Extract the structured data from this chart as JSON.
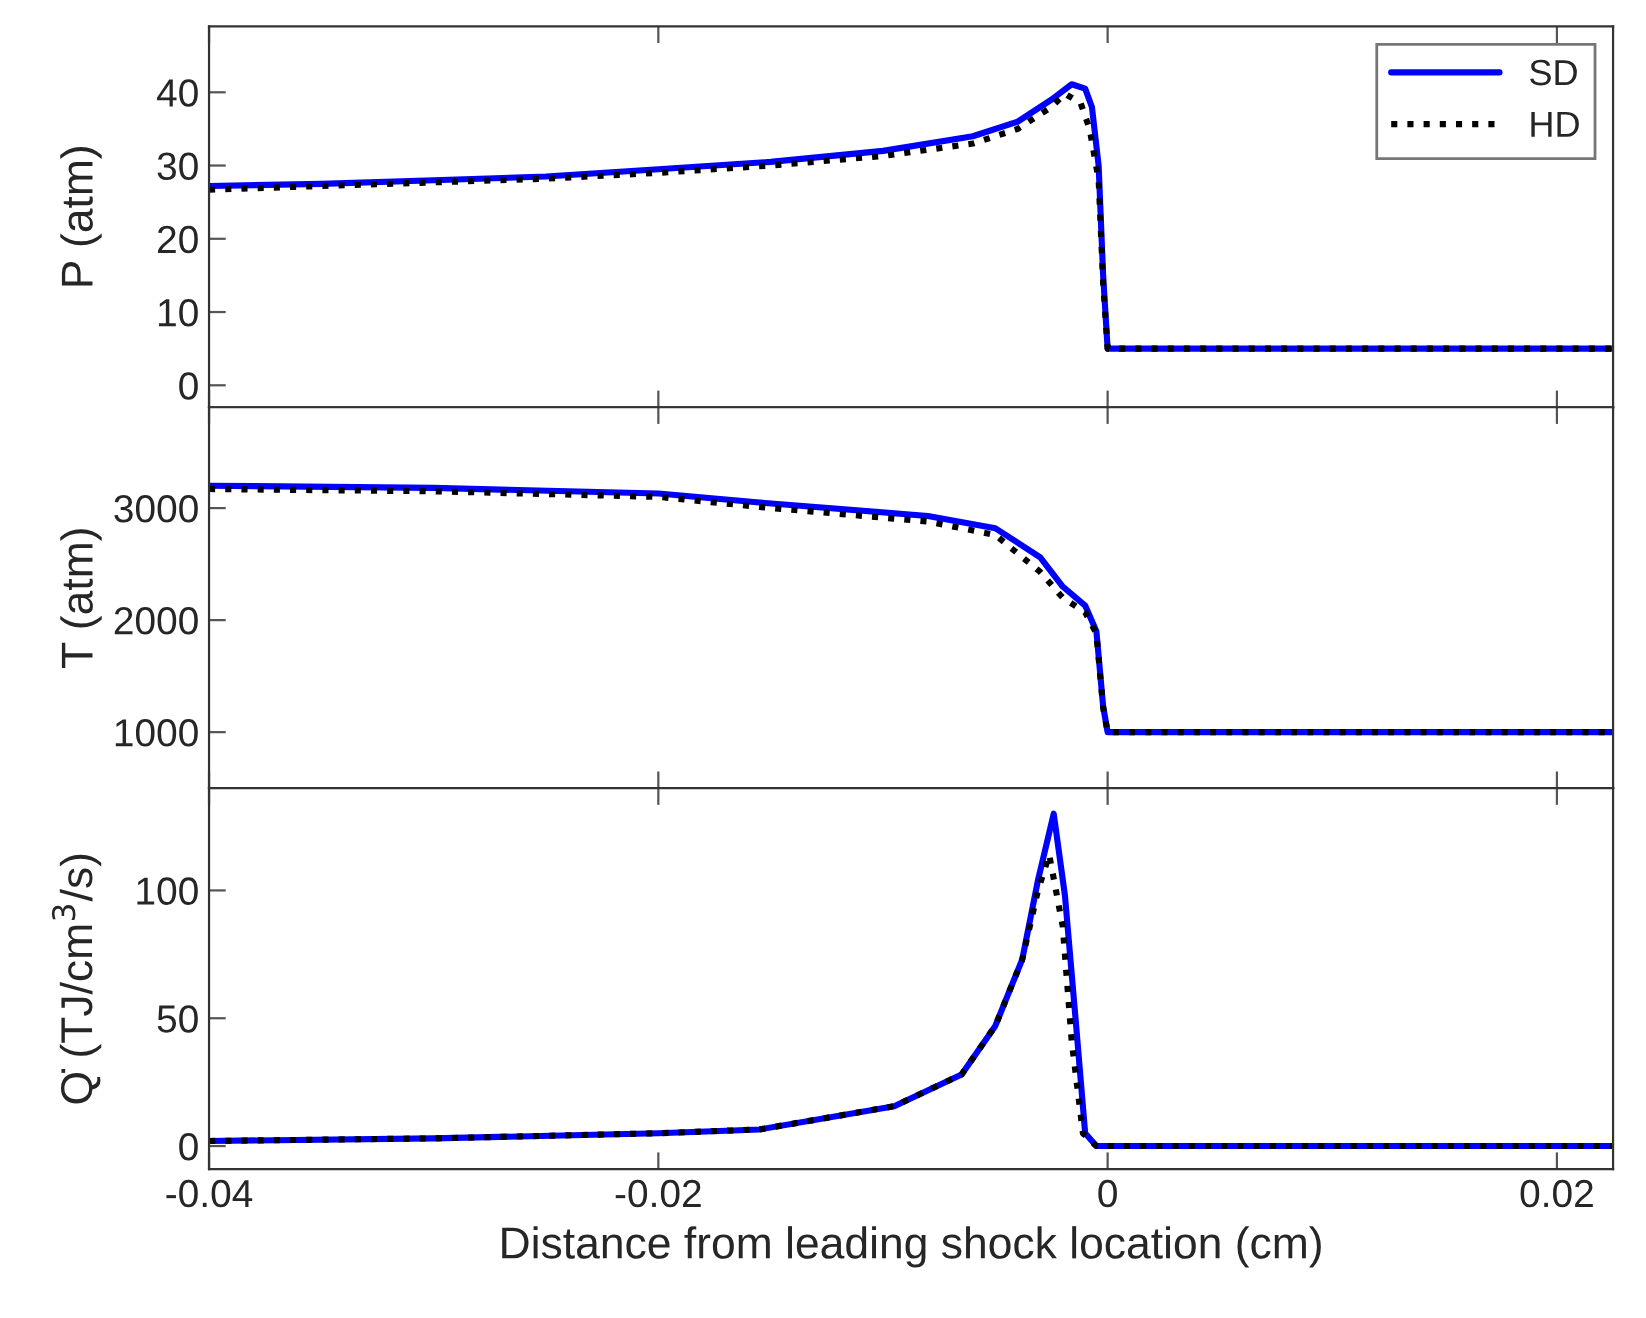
{
  "chart_data": [
    {
      "type": "line",
      "ylabel": "P (atm)",
      "xlim": [
        -0.04,
        0.0225
      ],
      "xticks": [
        -0.04,
        -0.02,
        0,
        0.02
      ],
      "ylim": [
        -3,
        49
      ],
      "yticks": [
        0,
        10,
        20,
        30,
        40
      ],
      "tick_labels": "y",
      "legend": "top right",
      "grid": false,
      "series": [
        {
          "name": "SD",
          "color": "#0000ff",
          "line_style": "solid",
          "x": [
            -0.04,
            -0.035,
            -0.03,
            -0.025,
            -0.02,
            -0.015,
            -0.01,
            -0.006,
            -0.004,
            -0.0025,
            -0.0016,
            -0.001,
            -0.0007,
            -0.0004,
            -0.0002,
            0,
            0.0225
          ],
          "values": [
            27.2,
            27.5,
            28,
            28.5,
            29.5,
            30.5,
            32,
            34,
            36,
            39,
            41.1,
            40.5,
            38,
            30,
            15,
            5,
            5
          ]
        },
        {
          "name": "HD",
          "color": "#000000",
          "line_style": "dotted",
          "x": [
            -0.04,
            -0.035,
            -0.03,
            -0.025,
            -0.02,
            -0.015,
            -0.01,
            -0.006,
            -0.004,
            -0.0025,
            -0.0019,
            -0.0012,
            -0.0008,
            -0.0004,
            -0.0002,
            0,
            0.0225
          ],
          "values": [
            26.7,
            27.2,
            27.7,
            28.2,
            29,
            30,
            31.3,
            33,
            35,
            38,
            39.8,
            38.5,
            35,
            28,
            14,
            5,
            5
          ]
        }
      ]
    },
    {
      "type": "line",
      "ylabel": "T (atm)",
      "xlim": [
        -0.04,
        0.0225
      ],
      "xticks": [
        -0.04,
        -0.02,
        0,
        0.02
      ],
      "ylim": [
        500,
        3900
      ],
      "yticks": [
        1000,
        2000,
        3000
      ],
      "tick_labels": "y",
      "grid": false,
      "series": [
        {
          "color": "#0000ff",
          "line_style": "solid",
          "x": [
            -0.04,
            -0.03,
            -0.02,
            -0.0155,
            -0.008,
            -0.005,
            -0.003,
            -0.002,
            -0.001,
            -0.0005,
            -0.0002,
            0,
            0.0225
          ],
          "values": [
            3200,
            3180,
            3130,
            3050,
            2930,
            2820,
            2560,
            2300,
            2130,
            1900,
            1230,
            1000,
            1000
          ]
        },
        {
          "color": "#000000",
          "line_style": "dotted",
          "x": [
            -0.04,
            -0.03,
            -0.02,
            -0.0155,
            -0.008,
            -0.005,
            -0.003,
            -0.002,
            -0.001,
            -0.0005,
            -0.0002,
            0,
            0.0225
          ],
          "values": [
            3170,
            3150,
            3100,
            3010,
            2880,
            2760,
            2430,
            2200,
            2070,
            1880,
            1220,
            1000,
            1000
          ]
        }
      ]
    },
    {
      "type": "line",
      "ylabel": "Q̇ (TJ/cm$^{3}$/s)",
      "xlabel": "Distance from leading shock location (cm)",
      "xlim": [
        -0.04,
        0.0225
      ],
      "xticks": [
        -0.04,
        -0.02,
        0,
        0.02
      ],
      "ylim": [
        -9,
        140
      ],
      "yticks": [
        0,
        50,
        100
      ],
      "grid": false,
      "series": [
        {
          "color": "#0000ff",
          "line_style": "solid",
          "x": [
            -0.04,
            -0.03,
            -0.02,
            -0.0155,
            -0.0095,
            -0.0065,
            -0.005,
            -0.0038,
            -0.0031,
            -0.0024,
            -0.0019,
            -0.0014,
            -0.001,
            -0.0005,
            0.0225
          ],
          "values": [
            2,
            3,
            5,
            6.5,
            15.6,
            28,
            47,
            73,
            104,
            130,
            98,
            47,
            5,
            0,
            0
          ]
        },
        {
          "color": "#000000",
          "line_style": "dotted",
          "x": [
            -0.04,
            -0.03,
            -0.02,
            -0.0155,
            -0.0095,
            -0.0065,
            -0.005,
            -0.0038,
            -0.0031,
            -0.0026,
            -0.002,
            -0.0016,
            -0.0011,
            -0.0005,
            0.0225
          ],
          "values": [
            2,
            3,
            5,
            6.5,
            15.6,
            28,
            47,
            73,
            100,
            114,
            86,
            41,
            5,
            0,
            0
          ]
        }
      ]
    }
  ]
}
